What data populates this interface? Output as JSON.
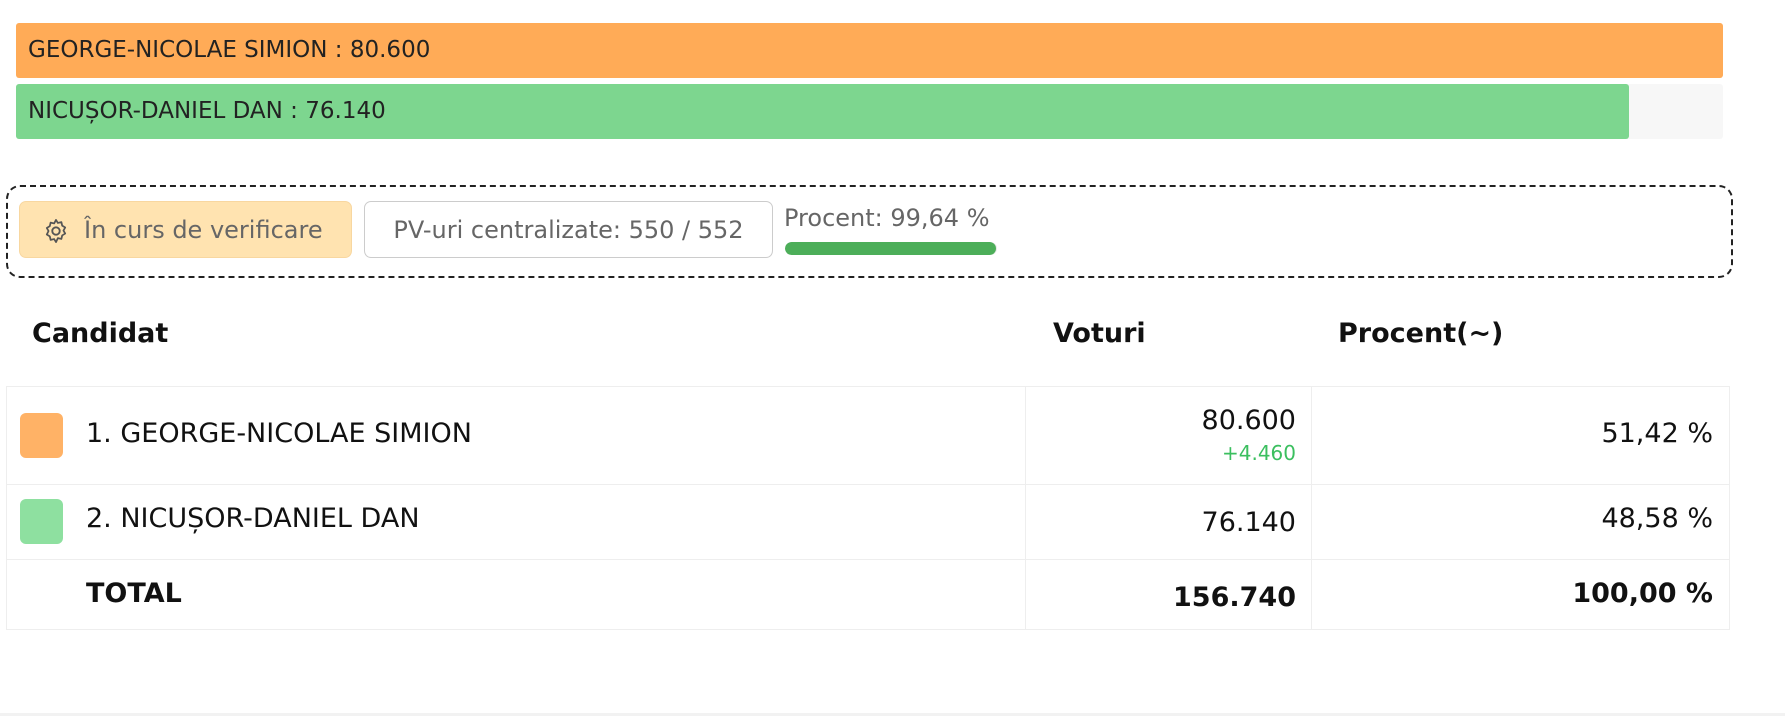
{
  "bars": [
    {
      "label": "GEORGE-NICOLAE SIMION : 80.600",
      "value": 80600,
      "color": "#ffab57"
    },
    {
      "label": "NICUȘOR-DANIEL DAN : 76.140",
      "value": 76140,
      "color": "#7dd68f"
    }
  ],
  "status": {
    "badge": "În curs de verificare",
    "pv": "PV-uri centralizate: 550 / 552",
    "percent_label": "Procent: 99,64 %",
    "percent": 99.64
  },
  "table": {
    "headers": [
      "Candidat",
      "Voturi",
      "Procent(~)"
    ],
    "rows": [
      {
        "color": "#ffb266",
        "name": "1. GEORGE-NICOLAE SIMION",
        "votes": "80.600",
        "delta": "+4.460",
        "percent": "51,42 %"
      },
      {
        "color": "#8ee0a0",
        "name": "2. NICUȘOR-DANIEL DAN",
        "votes": "76.140",
        "percent": "48,58 %"
      }
    ],
    "total": {
      "name": "TOTAL",
      "votes": "156.740",
      "percent": "100,00 %"
    }
  }
}
